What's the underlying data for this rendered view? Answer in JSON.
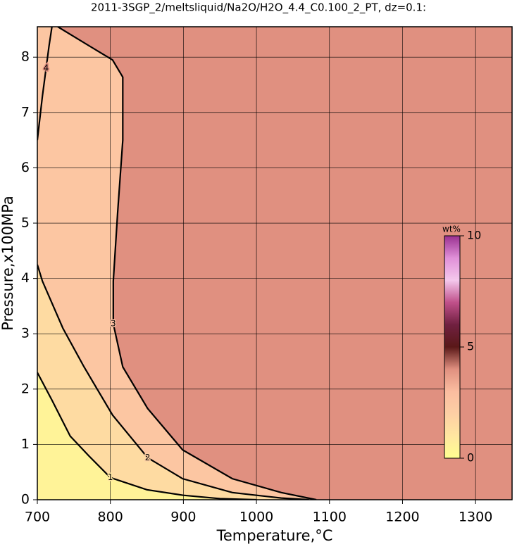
{
  "chart_data": {
    "type": "contour",
    "title": "2011-3SGP_2/meltsliquid/Na2O/H2O_4.4_C0.100_2_PT, dz=0.1:",
    "x_label": "Temperature,°C",
    "y_label": "Pressure,x100MPa",
    "xlim": [
      700,
      1350
    ],
    "ylim": [
      0,
      8.55
    ],
    "xticks": [
      700,
      800,
      900,
      1000,
      1100,
      1200,
      1300
    ],
    "yticks": [
      0,
      1,
      2,
      3,
      4,
      5,
      6,
      7,
      8
    ],
    "grid": true,
    "contours": [
      {
        "level": 1,
        "x": [
          700,
          720,
          745,
          770,
          800,
          850,
          900,
          950,
          1000
        ],
        "y": [
          2.3,
          1.8,
          1.15,
          0.8,
          0.4,
          0.18,
          0.08,
          0.02,
          0
        ]
      },
      {
        "level": 2,
        "x": [
          700,
          707,
          735,
          764,
          803,
          851,
          899,
          967,
          1034,
          1072
        ],
        "y": [
          4.25,
          3.95,
          3.1,
          2.4,
          1.53,
          0.76,
          0.38,
          0.13,
          0.03,
          0
        ]
      },
      {
        "level": 3,
        "x": [
          728,
          784,
          803,
          817,
          817,
          810,
          804,
          804,
          817,
          851,
          899,
          967,
          1034,
          1082
        ],
        "y": [
          8.55,
          8.1,
          7.95,
          7.64,
          6.5,
          5.2,
          3.95,
          3.18,
          2.4,
          1.65,
          0.9,
          0.38,
          0.13,
          0
        ]
      },
      {
        "level": 4,
        "x": [
          700,
          707,
          712,
          716,
          720
        ],
        "y": [
          6.5,
          7.3,
          7.8,
          8.2,
          8.55
        ]
      }
    ],
    "colorbar_label": "wt%",
    "clim": [
      0,
      10
    ],
    "cticks": [
      0,
      5,
      10
    ],
    "colormap": [
      "#ffff90",
      "#ffe6a0",
      "#fdcfa4",
      "#fbbda0",
      "#e09080",
      "#5a1818",
      "#702040",
      "#c0508a",
      "#f4c8ec",
      "#e090d8",
      "#9a3090"
    ],
    "line_color": "#000000"
  }
}
